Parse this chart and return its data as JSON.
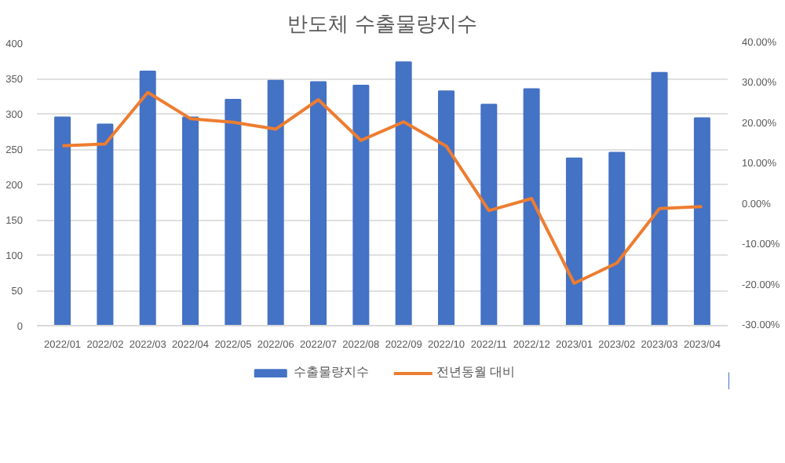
{
  "chart_data": {
    "type": "bar",
    "title": "반도체 수출물량지수",
    "categories": [
      "2022/01",
      "2022/02",
      "2022/03",
      "2022/04",
      "2022/05",
      "2022/06",
      "2022/07",
      "2022/08",
      "2022/09",
      "2022/10",
      "2022/11",
      "2022/12",
      "2023/01",
      "2023/02",
      "2023/03",
      "2023/04"
    ],
    "series": [
      {
        "name": "수출물량지수",
        "color": "#4472c4",
        "values": [
          295,
          285,
          360,
          295,
          320,
          347,
          345,
          340,
          373,
          332,
          313,
          335,
          237,
          245,
          358,
          294
        ]
      },
      {
        "name": "전년동월 대비",
        "type": "line",
        "axis": "y2",
        "color": "#ed7d31",
        "values": [
          14.6,
          15.0,
          27.8,
          21.3,
          20.4,
          18.7,
          26.0,
          15.9,
          20.5,
          14.5,
          -1.5,
          1.5,
          -19.5,
          -14.5,
          -1.0,
          -0.5
        ]
      }
    ],
    "ylim": [
      0,
      400
    ],
    "yticks": [
      0,
      50,
      100,
      150,
      200,
      250,
      300,
      350,
      400
    ],
    "y2lim": [
      -30,
      40
    ],
    "y2ticks": [
      {
        "value": -30,
        "label": "-30.00%"
      },
      {
        "value": -20,
        "label": "-20.00%"
      },
      {
        "value": -10,
        "label": "-10.00%"
      },
      {
        "value": 0,
        "label": "0.00%"
      },
      {
        "value": 10,
        "label": "10.00%"
      },
      {
        "value": 20,
        "label": "20.00%"
      },
      {
        "value": 30,
        "label": "30.00%"
      },
      {
        "value": 40,
        "label": "40.00%"
      }
    ],
    "grid": "y",
    "legend": "bottom",
    "line_style": "solid"
  }
}
